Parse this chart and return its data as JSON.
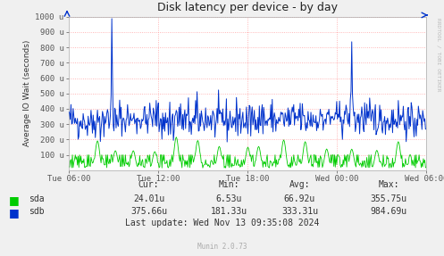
{
  "title": "Disk latency per device - by day",
  "ylabel": "Average IO Wait (seconds)",
  "background_color": "#f0f0f0",
  "plot_bg_color": "#ffffff",
  "grid_color": "#ff9999",
  "grid_h_color": "#cccccc",
  "sda_color": "#00cc00",
  "sdb_color": "#0033cc",
  "legend_sda": "sda",
  "legend_sdb": "sdb",
  "x_tick_labels": [
    "Tue 06:00",
    "Tue 12:00",
    "Tue 18:00",
    "Wed 00:00",
    "Wed 06:00"
  ],
  "y_tick_labels": [
    "100 u",
    "200 u",
    "300 u",
    "400 u",
    "500 u",
    "600 u",
    "700 u",
    "800 u",
    "900 u",
    "1000 u"
  ],
  "y_tick_values": [
    100,
    200,
    300,
    400,
    500,
    600,
    700,
    800,
    900,
    1000
  ],
  "stats_cur_sda": "24.01u",
  "stats_min_sda": "6.53u",
  "stats_avg_sda": "66.92u",
  "stats_max_sda": "355.75u",
  "stats_cur_sdb": "375.66u",
  "stats_min_sdb": "181.33u",
  "stats_avg_sdb": "333.31u",
  "stats_max_sdb": "984.69u",
  "last_update": "Last update: Wed Nov 13 09:35:08 2024",
  "munin_version": "Munin 2.0.73",
  "rrdtool_label": "RRDTOOL / TOBI OETIKER",
  "ymax": 1000,
  "ymin": 0,
  "num_points": 500
}
